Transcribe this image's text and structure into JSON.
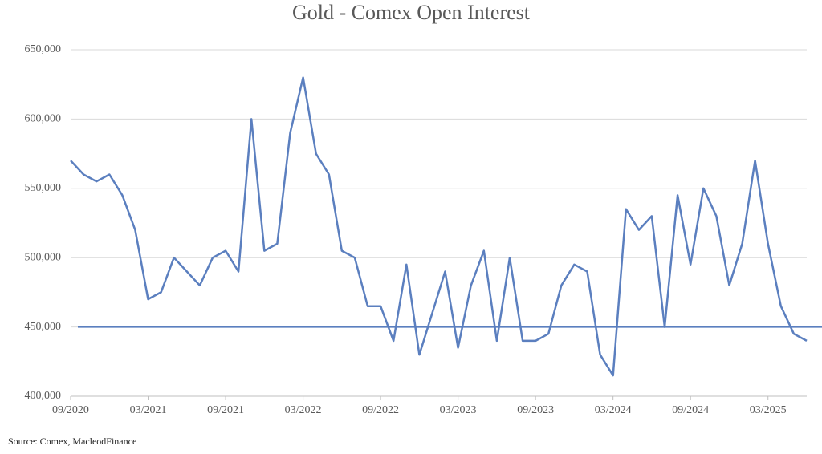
{
  "chart_data": {
    "type": "line",
    "title": "Gold - Comex Open Interest",
    "source": "Source: Comex,  MacleodFinance",
    "categories": [
      "09/2020",
      null,
      null,
      null,
      null,
      null,
      "03/2021",
      null,
      null,
      null,
      null,
      null,
      "09/2021",
      null,
      null,
      null,
      null,
      null,
      "03/2022",
      null,
      null,
      null,
      null,
      null,
      "09/2022",
      null,
      null,
      null,
      null,
      null,
      "03/2023",
      null,
      null,
      null,
      null,
      null,
      "09/2023",
      null,
      null,
      null,
      null,
      null,
      "03/2024",
      null,
      null,
      null,
      null,
      null,
      "09/2024",
      null,
      null,
      null,
      null,
      null,
      "03/2025",
      null,
      null,
      null
    ],
    "series": [
      {
        "color": "#5b7fbf",
        "values": [
          570000,
          560000,
          555000,
          560000,
          545000,
          520000,
          470000,
          475000,
          500000,
          490000,
          480000,
          500000,
          505000,
          490000,
          600000,
          505000,
          510000,
          590000,
          630000,
          575000,
          560000,
          505000,
          500000,
          465000,
          465000,
          440000,
          495000,
          430000,
          460000,
          490000,
          435000,
          480000,
          505000,
          440000,
          500000,
          440000,
          440000,
          445000,
          480000,
          495000,
          490000,
          430000,
          415000,
          535000,
          520000,
          530000,
          450000,
          545000,
          495000,
          550000,
          530000,
          480000,
          510000,
          570000,
          510000,
          465000,
          445000,
          440000
        ]
      }
    ],
    "hline": 450000,
    "ylim": [
      400000,
      650000
    ],
    "yticks": [
      {
        "value": 400000,
        "label": "400,000"
      },
      {
        "value": 450000,
        "label": "450,000"
      },
      {
        "value": 500000,
        "label": "500,000"
      },
      {
        "value": 550000,
        "label": "550,000"
      },
      {
        "value": 600000,
        "label": "600,000"
      },
      {
        "value": 650000,
        "label": "650,000"
      }
    ],
    "grid": true
  }
}
